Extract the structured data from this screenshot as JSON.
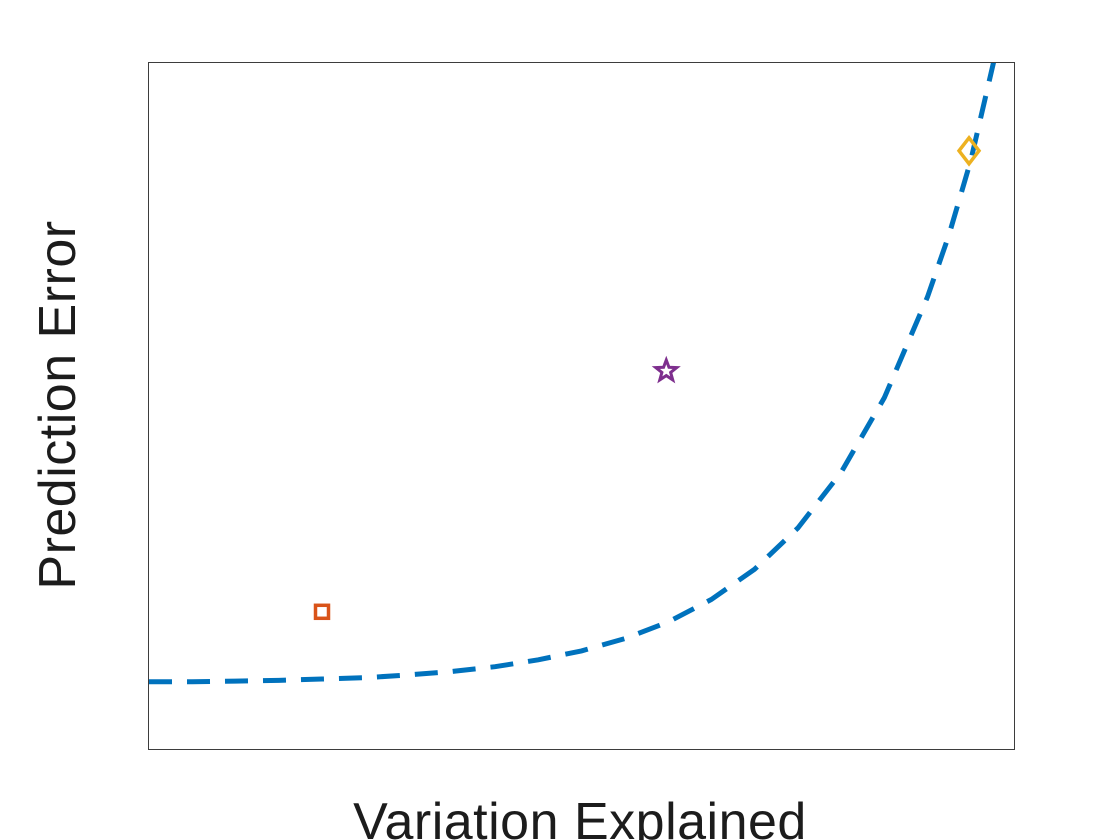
{
  "chart_data": {
    "type": "line",
    "title": "",
    "xlabel": "Variation Explained",
    "ylabel": "Prediction Error",
    "xlim": [
      0,
      1
    ],
    "ylim": [
      0,
      1
    ],
    "grid": false,
    "ticks": "none",
    "legend": "none",
    "axis_box_color": "#3d3d3d",
    "series": [
      {
        "name": "prediction-error-curve",
        "style": "dashed",
        "color": "#0072BD",
        "line_width": 5,
        "x": [
          0,
          0.05,
          0.1,
          0.15,
          0.2,
          0.25,
          0.3,
          0.35,
          0.4,
          0.45,
          0.5,
          0.55,
          0.6,
          0.65,
          0.7,
          0.75,
          0.8,
          0.85,
          0.9,
          0.925,
          0.95,
          0.978
        ],
        "y": [
          0.098,
          0.098,
          0.099,
          0.1,
          0.102,
          0.104,
          0.108,
          0.113,
          0.12,
          0.13,
          0.143,
          0.161,
          0.185,
          0.218,
          0.262,
          0.322,
          0.403,
          0.512,
          0.659,
          0.75,
          0.858,
          1.01
        ]
      }
    ],
    "points": [
      {
        "name": "square-point",
        "marker": "square",
        "color": "#D95319",
        "x": 0.2,
        "y": 0.2
      },
      {
        "name": "star-point",
        "marker": "star",
        "color": "#7E2F8E",
        "x": 0.598,
        "y": 0.551
      },
      {
        "name": "diamond-point",
        "marker": "diamond",
        "color": "#EDB120",
        "x": 0.948,
        "y": 0.872
      }
    ]
  }
}
